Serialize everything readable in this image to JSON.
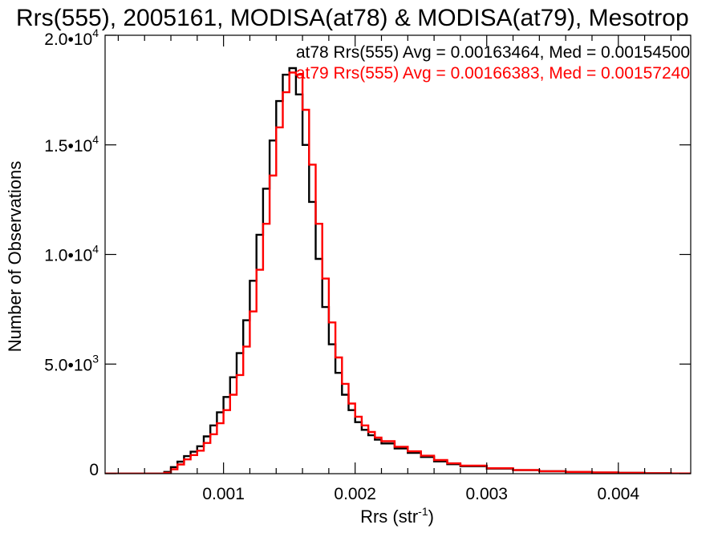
{
  "chart_data": {
    "type": "line",
    "title": "Rrs(555), 2005161, MODISA(at78) & MODISA(at79), Mesotrop",
    "xlabel": "Rrs (str",
    "xlabel_sup": "-1",
    "xlabel_end": ")",
    "ylabel": "Number of Observations",
    "xlim": [
      0.0001,
      0.00455
    ],
    "ylim": [
      0,
      20000
    ],
    "x_ticks": [
      {
        "value": 0.001,
        "label": "0.001"
      },
      {
        "value": 0.002,
        "label": "0.002"
      },
      {
        "value": 0.003,
        "label": "0.003"
      },
      {
        "value": 0.004,
        "label": "0.004"
      }
    ],
    "y_ticks": [
      {
        "value": 0,
        "base": "0",
        "exp": ""
      },
      {
        "value": 5000,
        "base": "5.0•10",
        "exp": "3"
      },
      {
        "value": 10000,
        "base": "1.0•10",
        "exp": "4"
      },
      {
        "value": 15000,
        "base": "1.5•10",
        "exp": "4"
      },
      {
        "value": 20000,
        "base": "2.0•10",
        "exp": "4"
      }
    ],
    "series": [
      {
        "name": "at78 Rrs(555) Avg = 0.00163464, Med = 0.00154500",
        "color": "#000000",
        "x": [
          0.0001,
          0.0005,
          0.00055,
          0.0006,
          0.00065,
          0.0007,
          0.00075,
          0.0008,
          0.00085,
          0.0009,
          0.00095,
          0.001,
          0.00105,
          0.0011,
          0.00115,
          0.0012,
          0.00125,
          0.0013,
          0.00135,
          0.0014,
          0.00145,
          0.0015,
          0.00155,
          0.0016,
          0.00165,
          0.0017,
          0.00175,
          0.0018,
          0.00185,
          0.0019,
          0.00195,
          0.002,
          0.00205,
          0.0021,
          0.00215,
          0.0022,
          0.0023,
          0.0024,
          0.0025,
          0.0026,
          0.0027,
          0.0028,
          0.003,
          0.0032,
          0.0034,
          0.0036,
          0.0038,
          0.004,
          0.0042,
          0.0044,
          0.00455
        ],
        "y": [
          0,
          0,
          80,
          300,
          550,
          800,
          1000,
          1250,
          1700,
          2200,
          2800,
          3500,
          4400,
          5500,
          7000,
          8800,
          10900,
          13000,
          15200,
          17000,
          18200,
          18500,
          17300,
          15000,
          12400,
          9800,
          7600,
          5900,
          4600,
          3600,
          2900,
          2350,
          2000,
          1750,
          1550,
          1380,
          1150,
          950,
          760,
          560,
          430,
          340,
          230,
          160,
          110,
          75,
          50,
          35,
          20,
          10,
          5
        ]
      },
      {
        "name": "at79 Rrs(555) Avg = 0.00166383, Med = 0.00157240",
        "color": "#ff0000",
        "x": [
          0.0001,
          0.0005,
          0.00055,
          0.0006,
          0.00065,
          0.0007,
          0.00075,
          0.0008,
          0.00085,
          0.0009,
          0.00095,
          0.001,
          0.00105,
          0.0011,
          0.00115,
          0.0012,
          0.00125,
          0.0013,
          0.00135,
          0.0014,
          0.00145,
          0.0015,
          0.00155,
          0.0016,
          0.00165,
          0.0017,
          0.00175,
          0.0018,
          0.00185,
          0.0019,
          0.00195,
          0.002,
          0.00205,
          0.0021,
          0.00215,
          0.0022,
          0.0023,
          0.0024,
          0.0025,
          0.0026,
          0.0027,
          0.0028,
          0.003,
          0.0032,
          0.0034,
          0.0036,
          0.0038,
          0.004,
          0.0042,
          0.0044,
          0.00455
        ],
        "y": [
          0,
          0,
          40,
          200,
          420,
          650,
          850,
          1050,
          1400,
          1800,
          2300,
          2900,
          3600,
          4500,
          5800,
          7400,
          9300,
          11400,
          13600,
          15800,
          17400,
          18300,
          18200,
          16600,
          14100,
          11400,
          8900,
          6900,
          5300,
          4100,
          3200,
          2600,
          2200,
          1900,
          1650,
          1480,
          1230,
          1020,
          820,
          620,
          470,
          370,
          250,
          170,
          115,
          80,
          55,
          38,
          22,
          12,
          6
        ]
      }
    ]
  }
}
